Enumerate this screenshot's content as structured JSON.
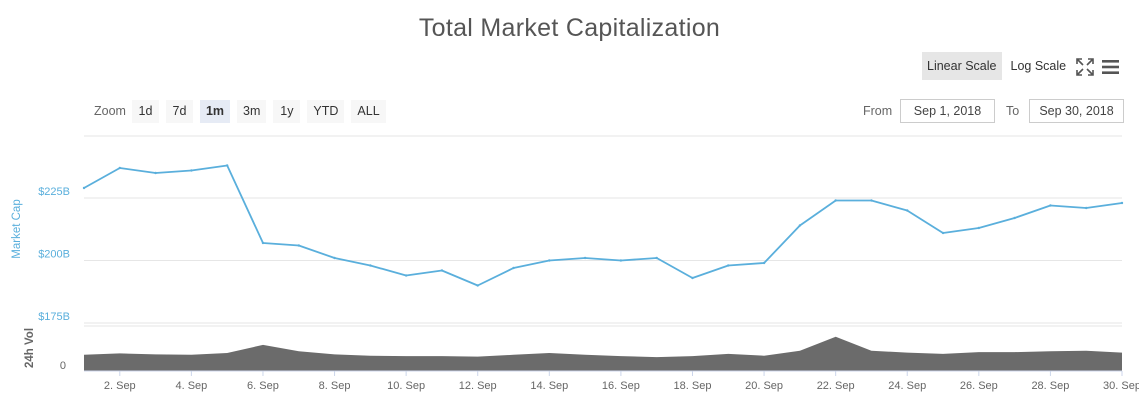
{
  "title": "Total Market Capitalization",
  "scale_buttons": {
    "linear": "Linear Scale",
    "log": "Log Scale"
  },
  "icons": {
    "fullscreen": "fullscreen-icon",
    "menu": "menu-icon"
  },
  "zoom": {
    "label": "Zoom",
    "buttons": [
      "1d",
      "7d",
      "1m",
      "3m",
      "1y",
      "YTD",
      "ALL"
    ],
    "active": "1m"
  },
  "date_range": {
    "from_label": "From",
    "from_value": "Sep 1, 2018",
    "to_label": "To",
    "to_value": "Sep 30, 2018"
  },
  "colors": {
    "line": "#5aafdc",
    "volume": "#6b6b6b",
    "axis_label": "#5aafdc",
    "grid": "#e6e6e6"
  },
  "chart_data": {
    "type": "line",
    "series": [
      {
        "name": "Market Cap",
        "x": [
          "2018-09-01",
          "2018-09-02",
          "2018-09-03",
          "2018-09-04",
          "2018-09-05",
          "2018-09-06",
          "2018-09-07",
          "2018-09-08",
          "2018-09-09",
          "2018-09-10",
          "2018-09-11",
          "2018-09-12",
          "2018-09-13",
          "2018-09-14",
          "2018-09-15",
          "2018-09-16",
          "2018-09-17",
          "2018-09-18",
          "2018-09-19",
          "2018-09-20",
          "2018-09-21",
          "2018-09-22",
          "2018-09-23",
          "2018-09-24",
          "2018-09-25",
          "2018-09-26",
          "2018-09-27",
          "2018-09-28",
          "2018-09-29",
          "2018-09-30"
        ],
        "values": [
          229,
          237,
          235,
          236,
          238,
          207,
          206,
          201,
          198,
          194,
          196,
          190,
          197,
          200,
          201,
          200,
          201,
          193,
          198,
          199,
          214,
          224,
          224,
          220,
          211,
          213,
          217,
          222,
          221,
          223
        ]
      },
      {
        "name": "24h Vol",
        "x": [
          "2018-09-01",
          "2018-09-02",
          "2018-09-03",
          "2018-09-04",
          "2018-09-05",
          "2018-09-06",
          "2018-09-07",
          "2018-09-08",
          "2018-09-09",
          "2018-09-10",
          "2018-09-11",
          "2018-09-12",
          "2018-09-13",
          "2018-09-14",
          "2018-09-15",
          "2018-09-16",
          "2018-09-17",
          "2018-09-18",
          "2018-09-19",
          "2018-09-20",
          "2018-09-21",
          "2018-09-22",
          "2018-09-23",
          "2018-09-24",
          "2018-09-25",
          "2018-09-26",
          "2018-09-27",
          "2018-09-28",
          "2018-09-29",
          "2018-09-30"
        ],
        "values": [
          0.36,
          0.39,
          0.37,
          0.36,
          0.4,
          0.58,
          0.44,
          0.37,
          0.34,
          0.33,
          0.33,
          0.32,
          0.36,
          0.4,
          0.36,
          0.33,
          0.31,
          0.33,
          0.38,
          0.34,
          0.45,
          0.76,
          0.45,
          0.41,
          0.38,
          0.42,
          0.42,
          0.44,
          0.45,
          0.41
        ]
      }
    ],
    "ylabel": "Market Cap",
    "y2label": "24h Vol",
    "y_ticks": [
      "$175B",
      "$200B",
      "$225B"
    ],
    "y_tick_values": [
      175,
      200,
      225
    ],
    "ylim": [
      175,
      250
    ],
    "y2_ticks": [
      "0"
    ],
    "x_ticks": [
      "2. Sep",
      "4. Sep",
      "6. Sep",
      "8. Sep",
      "10. Sep",
      "12. Sep",
      "14. Sep",
      "16. Sep",
      "18. Sep",
      "20. Sep",
      "22. Sep",
      "24. Sep",
      "26. Sep",
      "28. Sep",
      "30. Sep"
    ],
    "x_tick_dates": [
      "2018-09-02",
      "2018-09-04",
      "2018-09-06",
      "2018-09-08",
      "2018-09-10",
      "2018-09-12",
      "2018-09-14",
      "2018-09-16",
      "2018-09-18",
      "2018-09-20",
      "2018-09-22",
      "2018-09-24",
      "2018-09-26",
      "2018-09-28",
      "2018-09-30"
    ],
    "grid": true
  }
}
